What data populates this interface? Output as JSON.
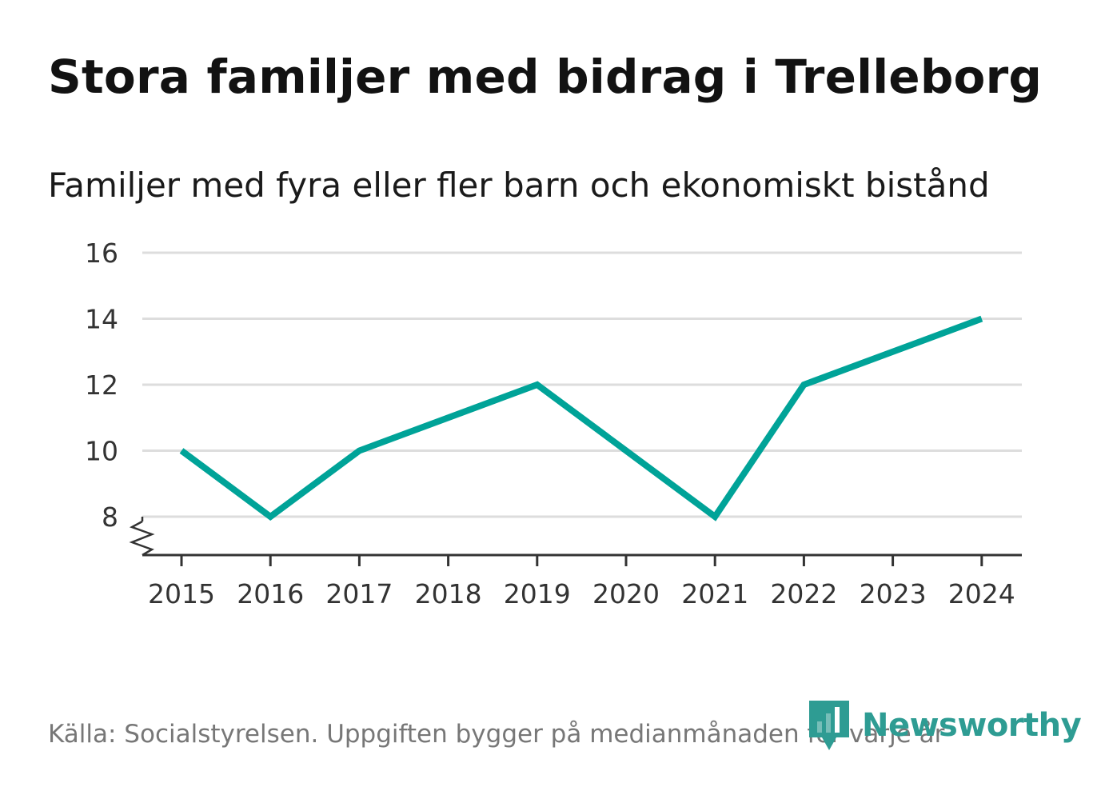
{
  "header": {
    "title": "Stora familjer med bidrag i Trelleborg",
    "subtitle": "Familjer med fyra eller fler barn och ekonomiskt bistånd"
  },
  "footer": {
    "source": "Källa: Socialstyrelsen. Uppgiften bygger på medianmånaden för varje år",
    "brand": "Newsworthy"
  },
  "colors": {
    "line": "#00a398",
    "grid": "#dddddd",
    "axis": "#333333",
    "brand": "#2e9c93"
  },
  "chart_data": {
    "type": "line",
    "title": "Stora familjer med bidrag i Trelleborg",
    "subtitle": "Familjer med fyra eller fler barn och ekonomiskt bistånd",
    "xlabel": "",
    "ylabel": "",
    "x": [
      "2015",
      "2016",
      "2017",
      "2018",
      "2019",
      "2020",
      "2021",
      "2022",
      "2023",
      "2024"
    ],
    "series": [
      {
        "name": "Familjer med fyra eller fler barn och ekonomiskt bistånd",
        "values": [
          10,
          8,
          10,
          11,
          12,
          10,
          8,
          12,
          13,
          14
        ]
      }
    ],
    "yticks": [
      8,
      10,
      12,
      14,
      16
    ],
    "ylim": [
      8,
      16
    ],
    "axis_break": true,
    "grid": true,
    "legend": "none"
  }
}
